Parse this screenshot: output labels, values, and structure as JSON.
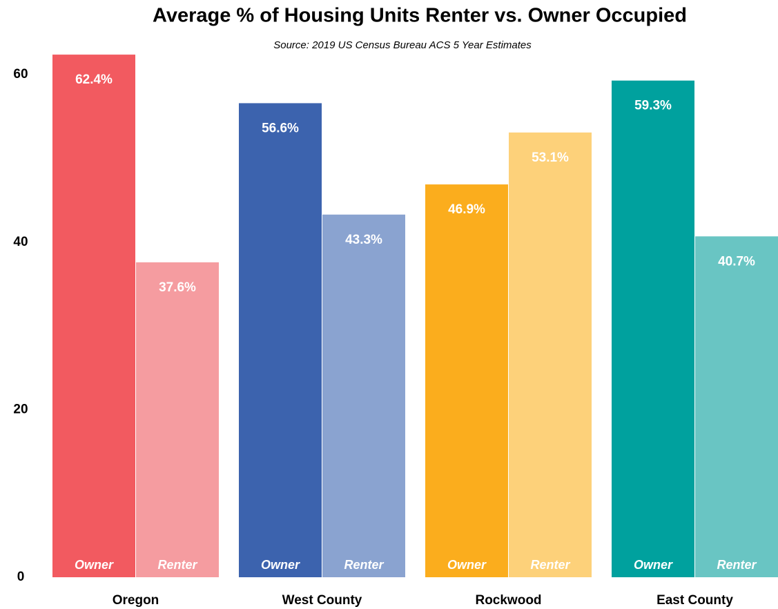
{
  "chart_data": {
    "type": "bar",
    "title": "Average % of Housing Units Renter vs. Owner Occupied",
    "subtitle": "Source:  2019 US Census Bureau ACS 5 Year Estimates",
    "categories": [
      "Oregon",
      "West County",
      "Rockwood",
      "East County"
    ],
    "series": [
      {
        "name": "Owner",
        "colors": [
          "#f25a60",
          "#3c63ae",
          "#fbad1d",
          "#00a19e"
        ],
        "values": [
          62.4,
          56.6,
          46.9,
          59.3
        ],
        "value_labels": [
          "62.4%",
          "56.6%",
          "46.9%",
          "59.3%"
        ]
      },
      {
        "name": "Renter",
        "colors": [
          "#f59ca0",
          "#8aa3d0",
          "#fdd17a",
          "#69c5c3"
        ],
        "values": [
          37.6,
          43.3,
          53.1,
          40.7
        ],
        "value_labels": [
          "37.6%",
          "43.3%",
          "53.1%",
          "40.7%"
        ]
      }
    ],
    "ylim": [
      0,
      65
    ],
    "yticks": [
      0,
      20,
      40,
      60
    ],
    "grid": false
  }
}
